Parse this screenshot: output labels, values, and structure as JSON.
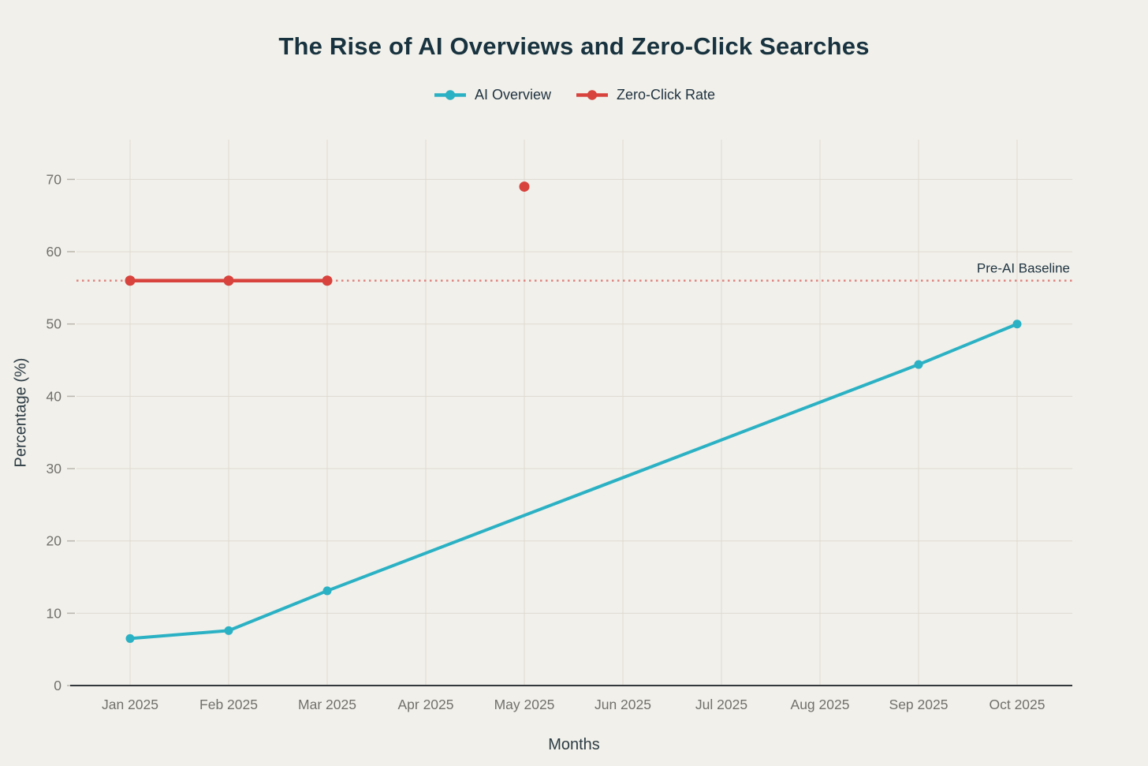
{
  "window": {
    "background": "#f1f0ea"
  },
  "chart_data": {
    "type": "line",
    "title": "The Rise of AI Overviews and Zero-Click Searches",
    "xlabel": "Months",
    "ylabel": "Percentage (%)",
    "x_categories": [
      "Jan 2025",
      "Feb 2025",
      "Mar 2025",
      "Apr 2025",
      "May 2025",
      "Jun 2025",
      "Jul 2025",
      "Aug 2025",
      "Sep 2025",
      "Oct 2025"
    ],
    "y_ticks": [
      0,
      10,
      20,
      30,
      40,
      50,
      60,
      70
    ],
    "ylim": [
      0,
      75.5
    ],
    "grid": true,
    "legend_position": "top-center",
    "series": [
      {
        "name": "AI Overview",
        "color": "#2bb1c4",
        "line_width": 4,
        "marker_radius": 5.5,
        "connect_gaps": true,
        "values": [
          6.5,
          7.6,
          13.1,
          null,
          null,
          null,
          null,
          null,
          44.4,
          50
        ]
      },
      {
        "name": "Zero-Click Rate",
        "color": "#d8433e",
        "line_width": 4.5,
        "marker_radius": 6.5,
        "connect_gaps": false,
        "values": [
          56,
          56,
          56,
          null,
          69,
          null,
          null,
          null,
          null,
          null
        ]
      }
    ],
    "annotations": [
      {
        "text": "Pre-AI Baseline",
        "y": 56,
        "line_color": "#df8480",
        "line_style": "dotted"
      }
    ],
    "colors": {
      "grid": "#dedad2",
      "tick_mark": "#b9b6ae",
      "tick_label": "#71706b",
      "axis_line": "#33383c",
      "title": "#18333f",
      "axis_title": "#2c3b44",
      "annotation_text": "#203543"
    }
  }
}
